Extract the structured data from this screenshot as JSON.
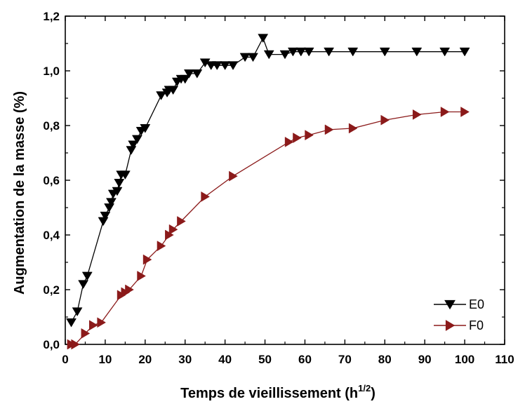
{
  "chart_data": {
    "type": "line",
    "xlabel": "Temps de vieillissement (h",
    "xlabel_sup": "1/2",
    "xlabel_close": ")",
    "ylabel": "Augmentation de la masse (%)",
    "xlim": [
      0,
      110
    ],
    "ylim": [
      0,
      1.2
    ],
    "xticks": [
      0,
      10,
      20,
      30,
      40,
      50,
      60,
      70,
      80,
      90,
      100,
      110
    ],
    "yticks": [
      0,
      0.2,
      0.4,
      0.6,
      0.8,
      1.0,
      1.2
    ],
    "ytick_labels": [
      "0,0",
      "0,2",
      "0,4",
      "0,6",
      "0,8",
      "1,0",
      "1,2"
    ],
    "grid": false,
    "legend_position": "bottom-right",
    "series": [
      {
        "name": "E0",
        "color": "#000000",
        "marker": "triangle-down",
        "points": [
          [
            1.5,
            0.08
          ],
          [
            3,
            0.12
          ],
          [
            4.5,
            0.22
          ],
          [
            5.5,
            0.25
          ],
          [
            9.5,
            0.45
          ],
          [
            10,
            0.47
          ],
          [
            11,
            0.5
          ],
          [
            11.5,
            0.52
          ],
          [
            12,
            0.55
          ],
          [
            13,
            0.56
          ],
          [
            13.5,
            0.59
          ],
          [
            14,
            0.62
          ],
          [
            15,
            0.62
          ],
          [
            16.5,
            0.71
          ],
          [
            17,
            0.73
          ],
          [
            18,
            0.75
          ],
          [
            19,
            0.78
          ],
          [
            20,
            0.79
          ],
          [
            24,
            0.91
          ],
          [
            25.5,
            0.92
          ],
          [
            26,
            0.93
          ],
          [
            27,
            0.93
          ],
          [
            28,
            0.96
          ],
          [
            29,
            0.97
          ],
          [
            30,
            0.97
          ],
          [
            31,
            0.99
          ],
          [
            33,
            0.99
          ],
          [
            35,
            1.03
          ],
          [
            36.5,
            1.02
          ],
          [
            38,
            1.02
          ],
          [
            40,
            1.02
          ],
          [
            42,
            1.02
          ],
          [
            45,
            1.05
          ],
          [
            47,
            1.05
          ],
          [
            49.5,
            1.12
          ],
          [
            51,
            1.06
          ],
          [
            55,
            1.06
          ],
          [
            57,
            1.07
          ],
          [
            59,
            1.07
          ],
          [
            61,
            1.07
          ],
          [
            66,
            1.07
          ],
          [
            72,
            1.07
          ],
          [
            80,
            1.07
          ],
          [
            88,
            1.07
          ],
          [
            95,
            1.07
          ],
          [
            100,
            1.07
          ]
        ]
      },
      {
        "name": "F0",
        "color": "#8B1A1A",
        "marker": "triangle-right",
        "points": [
          [
            1.5,
            0.0
          ],
          [
            2.5,
            0.0
          ],
          [
            5,
            0.04
          ],
          [
            7,
            0.07
          ],
          [
            9,
            0.08
          ],
          [
            14,
            0.18
          ],
          [
            15,
            0.19
          ],
          [
            16,
            0.2
          ],
          [
            19,
            0.25
          ],
          [
            20.5,
            0.31
          ],
          [
            24,
            0.36
          ],
          [
            26,
            0.4
          ],
          [
            27,
            0.42
          ],
          [
            29,
            0.45
          ],
          [
            35,
            0.54
          ],
          [
            42,
            0.615
          ],
          [
            56,
            0.74
          ],
          [
            58,
            0.755
          ],
          [
            61,
            0.765
          ],
          [
            66,
            0.785
          ],
          [
            72,
            0.79
          ],
          [
            80,
            0.82
          ],
          [
            88,
            0.84
          ],
          [
            95,
            0.85
          ],
          [
            100,
            0.85
          ]
        ]
      }
    ]
  }
}
